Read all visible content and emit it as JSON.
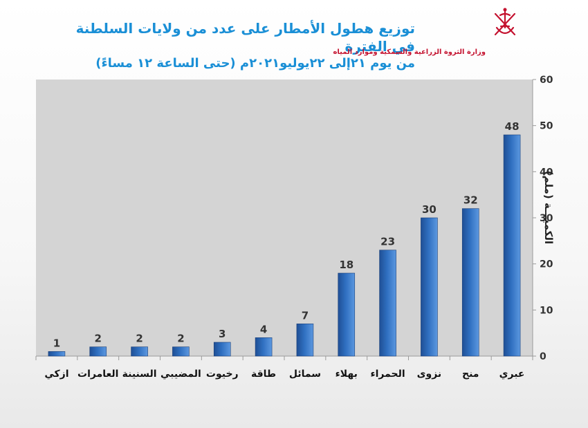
{
  "header": {
    "title_line1": "توزيع هطول الأمطار على عدد من ولايات السلطنة في الفترة",
    "title_line2": "من يوم ٢١إلى ٢٢يوليو٢٠٢١م (حتى الساعة ١٢ مساءً)",
    "ministry": "وزارة الثروة الزراعية والسمكية وموارد المياه"
  },
  "chart_data": {
    "type": "bar",
    "categories": [
      "ازكي",
      "العامرات",
      "السنينة",
      "المضيبي",
      "رخيوت",
      "طاقة",
      "سمائل",
      "بهلاء",
      "الحمراء",
      "نزوى",
      "منح",
      "عبري"
    ],
    "values": [
      1,
      2,
      2,
      2,
      3,
      4,
      7,
      18,
      23,
      30,
      32,
      48
    ],
    "ylabel": "الكميـــة (ملم)",
    "ylim": [
      0,
      60
    ],
    "yticks": [
      0,
      10,
      20,
      30,
      40,
      50,
      60
    ],
    "y_axis_side": "right",
    "grid": false,
    "data_labels": true,
    "bar_color": "#2f6fc0",
    "plot_bg": "#d4d4d4"
  }
}
